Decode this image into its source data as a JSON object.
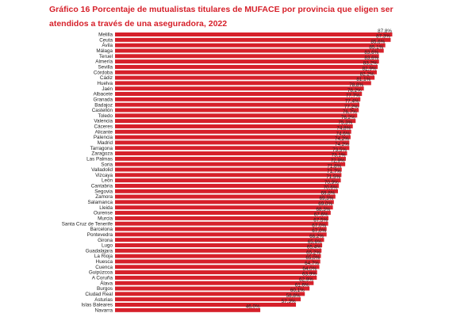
{
  "chart_data": {
    "type": "bar",
    "orientation": "horizontal",
    "title": "Gráfico 16 Porcentaje de mutualistas titulares de MUFACE por provincia que eligen ser atendidos a través de una aseguradora, 2022",
    "bar_color": "#d6202a",
    "title_color": "#d6202a",
    "grid": false,
    "xlim": [
      0,
      90
    ],
    "categories": [
      "Melilla",
      "Ceuta",
      "Ávila",
      "Málaga",
      "Teruel",
      "Almería",
      "Sevilla",
      "Córdoba",
      "Cádiz",
      "Huelva",
      "Jaén",
      "Albacete",
      "Granada",
      "Badajoz",
      "Castellón",
      "Toledo",
      "Valencia",
      "Cáceres",
      "Alicante",
      "Palencia",
      "Madrid",
      "Tarragona",
      "Zaragoza",
      "Las Palmas",
      "Soria",
      "Valladolid",
      "Vizcaya",
      "León",
      "Cantabria",
      "Segovia",
      "Zamora",
      "Salamanca",
      "Lleida",
      "Ourense",
      "Murcia",
      "Santa Cruz de Tenerife",
      "Barcelona",
      "Pontevedra",
      "Girona",
      "Lugo",
      "Guadalajara",
      "La Rioja",
      "Huesca",
      "Cuenca",
      "Guipúzcoa",
      "A Coruña",
      "Álava",
      "Burgos",
      "Ciudad Real",
      "Asturias",
      "Islas Baleares",
      "Navarra"
    ],
    "values": [
      87.8,
      87.3,
      85.6,
      85.1,
      83.6,
      83.6,
      83.2,
      82.9,
      82.2,
      81.1,
      78.8,
      78.2,
      77.7,
      77.4,
      77.2,
      76.7,
      76.2,
      75.3,
      74.8,
      74.6,
      74.2,
      74.2,
      73.5,
      73.1,
      72.9,
      71.8,
      71.7,
      71.5,
      70.9,
      70.6,
      69.8,
      69.3,
      69.0,
      68.3,
      67.6,
      67.5,
      67.0,
      67.0,
      66.2,
      65.6,
      65.4,
      65.2,
      65.0,
      64.7,
      64.0,
      63.9,
      62.9,
      61.6,
      60.1,
      58.8,
      57.3,
      46.0
    ],
    "value_labels": [
      "87,8%",
      "87,3%",
      "85,6%",
      "85,1%",
      "83,6%",
      "83,6%",
      "83,2%",
      "82,9%",
      "82,2%",
      "81,1%",
      "78,8%",
      "78,2%",
      "77,7%",
      "77,4%",
      "77,2%",
      "76,7%",
      "76,2%",
      "75,3%",
      "74,8%",
      "74,6%",
      "74,2%",
      "74,2%",
      "73,5%",
      "73,1%",
      "72,9%",
      "71,8%",
      "71,7%",
      "71,5%",
      "70,9%",
      "70,6%",
      "69,8%",
      "69,3%",
      "69,0%",
      "68,3%",
      "67,6%",
      "67,5%",
      "67,0%",
      "67,0%",
      "66,2%",
      "65,6%",
      "65,4%",
      "65,2%",
      "65,0%",
      "64,7%",
      "64,0%",
      "63,9%",
      "62,9%",
      "61,6%",
      "60,1%",
      "58,8%",
      "57,3%",
      "46,0%"
    ]
  }
}
